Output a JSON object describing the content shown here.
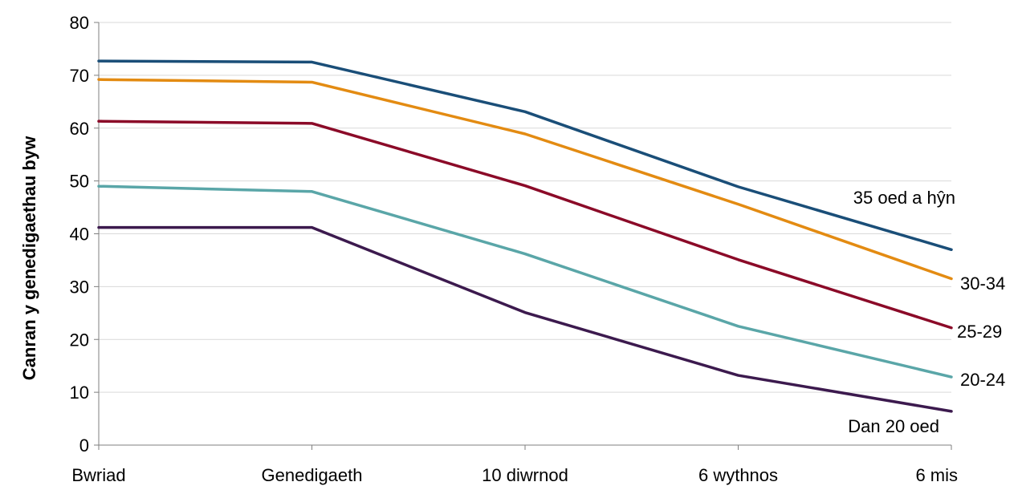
{
  "chart_data": {
    "type": "line",
    "ylabel": "Canran y genedigaethau byw",
    "xlabel": "",
    "ylim": [
      0,
      80
    ],
    "yticks": [
      0,
      10,
      20,
      30,
      40,
      50,
      60,
      70,
      80
    ],
    "grid": true,
    "categories": [
      "Bwriad",
      "Genedigaeth",
      "10 diwrnod",
      "6 wythnos",
      "6 mis"
    ],
    "series": [
      {
        "name": "35 oed a hŷn",
        "color": "#1a4e78",
        "values": [
          72.7,
          72.5,
          63.1,
          48.9,
          37.0
        ]
      },
      {
        "name": "30-34",
        "color": "#e38b12",
        "values": [
          69.2,
          68.7,
          58.9,
          45.6,
          31.5
        ]
      },
      {
        "name": "25-29",
        "color": "#8b0a28",
        "values": [
          61.3,
          60.9,
          49.1,
          35.1,
          22.2
        ]
      },
      {
        "name": "20-24",
        "color": "#5aa6a8",
        "values": [
          49.0,
          48.0,
          36.2,
          22.5,
          12.9
        ]
      },
      {
        "name": "Dan 20 oed",
        "color": "#3c1a4e",
        "values": [
          41.2,
          41.2,
          25.1,
          13.2,
          6.4
        ]
      }
    ]
  }
}
